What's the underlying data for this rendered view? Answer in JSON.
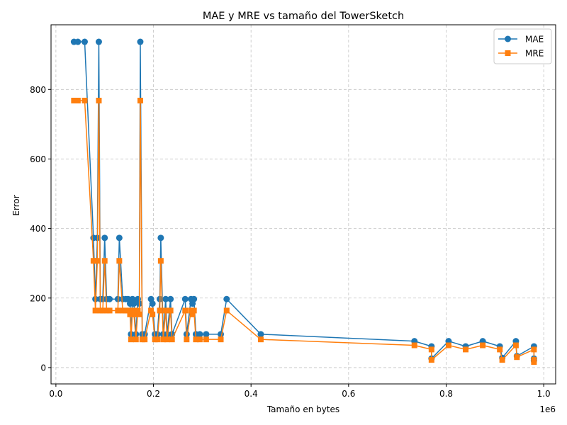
{
  "chart_data": {
    "type": "line",
    "title": "MAE y MRE vs tamaño del TowerSketch",
    "xlabel": "Tamaño en bytes",
    "ylabel": "Error",
    "x_offset_label": "1e6",
    "xlim": [
      -0.01,
      1.0245
    ],
    "ylim": [
      -47,
      986
    ],
    "xticks": [
      0.0,
      0.2,
      0.4,
      0.6,
      0.8,
      1.0
    ],
    "xtick_labels": [
      "0.0",
      "0.2",
      "0.4",
      "0.6",
      "0.8",
      "1.0"
    ],
    "yticks": [
      0,
      200,
      400,
      600,
      800
    ],
    "ytick_labels": [
      "0",
      "200",
      "400",
      "600",
      "800"
    ],
    "grid": true,
    "legend_position": "top-right",
    "x": [
      0.037,
      0.045,
      0.059,
      0.077,
      0.081,
      0.085,
      0.088,
      0.091,
      0.096,
      0.1,
      0.104,
      0.11,
      0.127,
      0.13,
      0.137,
      0.143,
      0.148,
      0.152,
      0.154,
      0.157,
      0.16,
      0.164,
      0.168,
      0.171,
      0.173,
      0.177,
      0.182,
      0.195,
      0.198,
      0.203,
      0.208,
      0.213,
      0.215,
      0.22,
      0.225,
      0.228,
      0.235,
      0.238,
      0.265,
      0.268,
      0.277,
      0.28,
      0.283,
      0.287,
      0.295,
      0.308,
      0.338,
      0.35,
      0.42,
      0.735,
      0.77,
      0.77,
      0.805,
      0.84,
      0.875,
      0.91,
      0.915,
      0.943,
      0.945,
      0.98,
      0.98,
      0.98
    ],
    "series": [
      {
        "name": "MAE",
        "color": "#1f77b4",
        "marker": "circle",
        "values": [
          937,
          937,
          937,
          373,
          197,
          373,
          937,
          197,
          197,
          373,
          197,
          197,
          197,
          373,
          197,
          197,
          197,
          184,
          96,
          197,
          184,
          96,
          197,
          184,
          937,
          96,
          96,
          197,
          184,
          96,
          96,
          197,
          373,
          96,
          197,
          96,
          197,
          96,
          197,
          96,
          197,
          184,
          197,
          96,
          96,
          96,
          96,
          197,
          96,
          76,
          61,
          26,
          76,
          61,
          76,
          61,
          28,
          76,
          33,
          61,
          26,
          20
        ]
      },
      {
        "name": "MRE",
        "color": "#ff7f0e",
        "marker": "square",
        "values": [
          768,
          768,
          768,
          307,
          164,
          307,
          768,
          164,
          164,
          307,
          164,
          164,
          164,
          307,
          164,
          164,
          164,
          153,
          81,
          164,
          153,
          81,
          164,
          153,
          768,
          81,
          81,
          164,
          153,
          81,
          81,
          164,
          307,
          81,
          164,
          81,
          164,
          81,
          164,
          81,
          164,
          153,
          164,
          81,
          81,
          81,
          81,
          164,
          81,
          64,
          52,
          22,
          64,
          52,
          64,
          52,
          22,
          64,
          30,
          52,
          22,
          16
        ]
      }
    ]
  }
}
